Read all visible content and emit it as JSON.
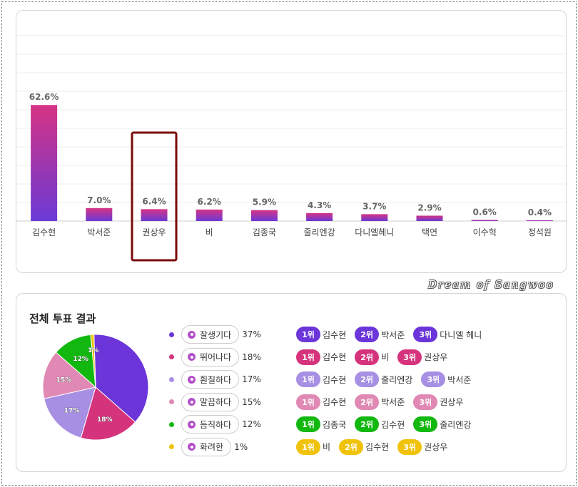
{
  "chart_data": [
    {
      "type": "bar",
      "categories": [
        "김수현",
        "박서준",
        "권상우",
        "비",
        "김종국",
        "줄리엔강",
        "다니엘헤니",
        "택연",
        "이수혁",
        "정석원"
      ],
      "values": [
        62.6,
        7.0,
        6.4,
        6.2,
        5.9,
        4.3,
        3.7,
        2.9,
        0.6,
        0.4
      ],
      "data_labels": [
        "62.6%",
        "7.0%",
        "6.4%",
        "6.2%",
        "5.9%",
        "4.3%",
        "3.7%",
        "2.9%",
        "0.6%",
        "0.4%"
      ],
      "ylim": [
        0,
        100
      ],
      "grid": true,
      "highlight_category": "권상우",
      "highlight_color": "#7b0a0a",
      "bar_gradient": [
        "#d63384",
        "#6a3ad6"
      ]
    },
    {
      "type": "pie",
      "labels": [
        "잘생기다",
        "뛰어나다",
        "훤칠하다",
        "말끔하다",
        "듬직하다",
        "화려한"
      ],
      "values": [
        37,
        18,
        17,
        15,
        12,
        1
      ],
      "colors": [
        "#6b35d9",
        "#d6337d",
        "#a78fe3",
        "#e089b4",
        "#12b80f",
        "#f0c20a"
      ],
      "slice_labels": [
        "",
        "18%",
        "17%",
        "15%",
        "12%",
        "1%"
      ]
    }
  ],
  "pie_panel": {
    "title": "전체 투표 결과",
    "legend": [
      {
        "label": "잘생기다",
        "pct": "37%"
      },
      {
        "label": "뛰어나다",
        "pct": "18%"
      },
      {
        "label": "훤칠하다",
        "pct": "17%"
      },
      {
        "label": "말끔하다",
        "pct": "15%"
      },
      {
        "label": "듬직하다",
        "pct": "12%"
      },
      {
        "label": "화려한",
        "pct": "1%"
      }
    ],
    "rankings": [
      {
        "color": "#6b35d9",
        "items": [
          {
            "rank": "1위",
            "name": "김수현"
          },
          {
            "rank": "2위",
            "name": "박서준"
          },
          {
            "rank": "3위",
            "name": "다니엘 헤니"
          }
        ]
      },
      {
        "color": "#d6337d",
        "items": [
          {
            "rank": "1위",
            "name": "김수현"
          },
          {
            "rank": "2위",
            "name": "비"
          },
          {
            "rank": "3위",
            "name": "권상우"
          }
        ]
      },
      {
        "color": "#a78fe3",
        "items": [
          {
            "rank": "1위",
            "name": "김수현"
          },
          {
            "rank": "2위",
            "name": "줄리엔강"
          },
          {
            "rank": "3위",
            "name": "박서준"
          }
        ]
      },
      {
        "color": "#e089b4",
        "items": [
          {
            "rank": "1위",
            "name": "김수현"
          },
          {
            "rank": "2위",
            "name": "박서준"
          },
          {
            "rank": "3위",
            "name": "권상우"
          }
        ]
      },
      {
        "color": "#12b80f",
        "items": [
          {
            "rank": "1위",
            "name": "김종국"
          },
          {
            "rank": "2위",
            "name": "김수현"
          },
          {
            "rank": "3위",
            "name": "줄리엔강"
          }
        ]
      },
      {
        "color": "#f0c20a",
        "items": [
          {
            "rank": "1위",
            "name": "비"
          },
          {
            "rank": "2위",
            "name": "김수현"
          },
          {
            "rank": "3위",
            "name": "권상우"
          }
        ]
      }
    ]
  },
  "watermark": "Dream of Sangwoo"
}
